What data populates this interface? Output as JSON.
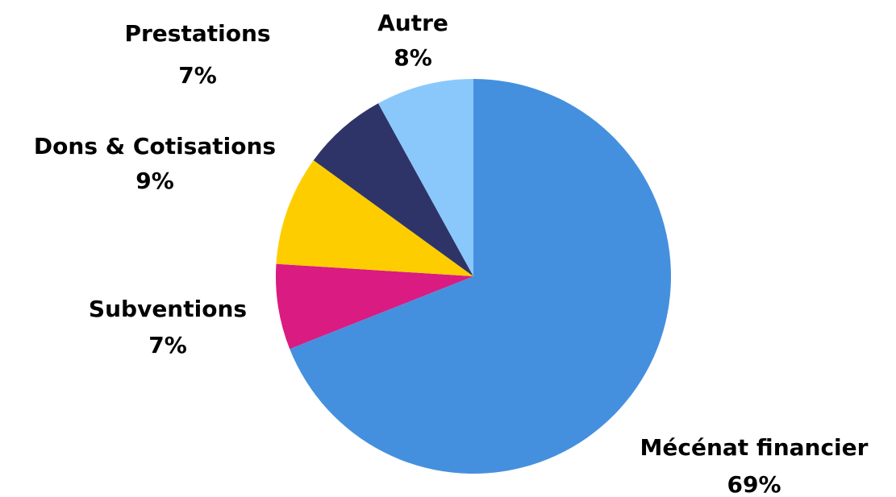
{
  "chart_data": {
    "type": "pie",
    "categories": [
      "Mécénat financier",
      "Subventions",
      "Dons & Cotisations",
      "Prestations",
      "Autre"
    ],
    "values": [
      69,
      7,
      9,
      7,
      8
    ],
    "value_labels": [
      "69%",
      "7%",
      "9%",
      "7%",
      "8%"
    ],
    "colors": [
      "#4590de",
      "#d91b82",
      "#fecd00",
      "#2f3468",
      "#8ac8fb"
    ]
  }
}
